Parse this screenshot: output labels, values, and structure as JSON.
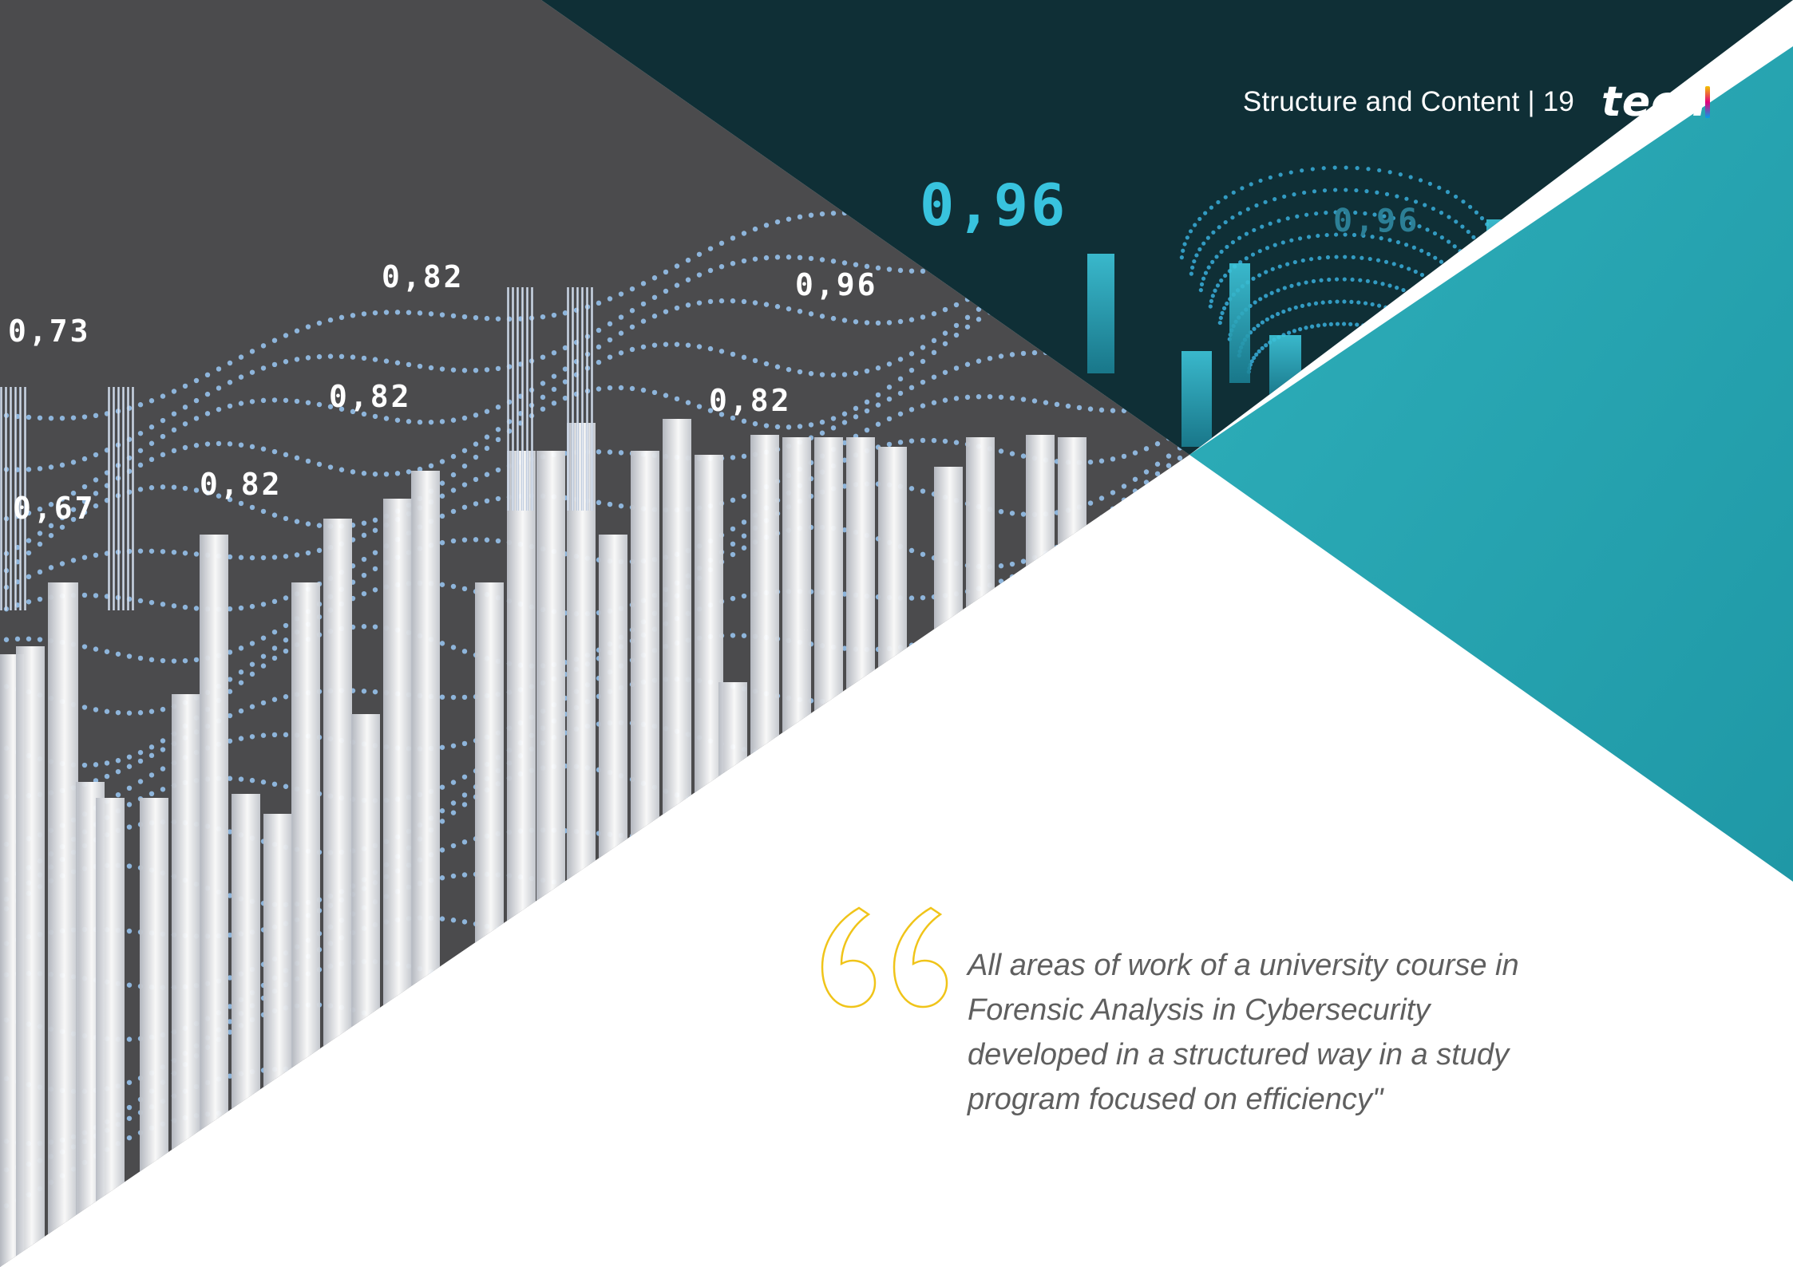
{
  "header": {
    "section_title": "Structure and Content | 19",
    "logo_text": "tech"
  },
  "quote": {
    "text": "All areas of work of a university course in Forensic Analysis in Cybersecurity developed in a structured way in a study program focused on efficiency\""
  },
  "chart_image": {
    "values_shown": [
      "0,96",
      "0,96",
      "0,82",
      "0,96",
      "0,73",
      "0,82",
      "0,82",
      "0,82",
      "0,67",
      "0,82"
    ]
  },
  "colors": {
    "dark_panel": "#4b4b4d",
    "teal_dark": "#0f2f36",
    "teal": "#26a2b0",
    "quote_mark": "#f0c419",
    "quote_text": "#5f5f5f"
  }
}
